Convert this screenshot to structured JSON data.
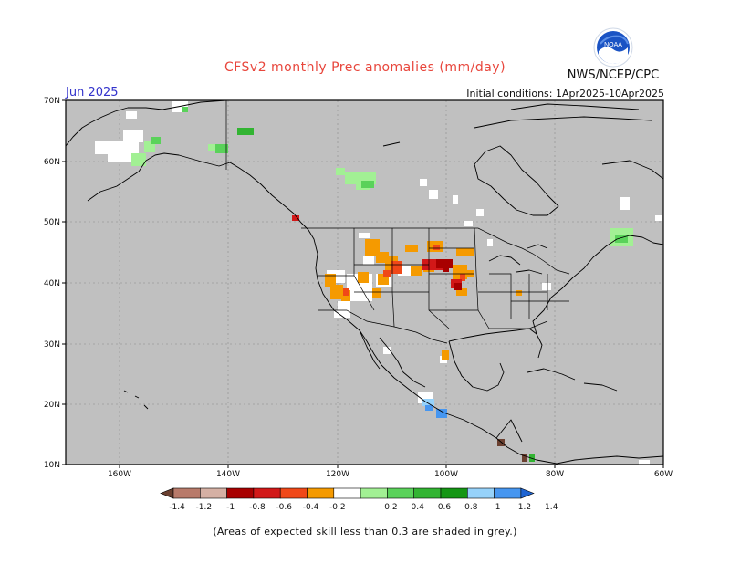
{
  "header": {
    "title": "CFSv2 monthly Prec anomalies (mm/day)",
    "month": "Jun 2025",
    "initial_conditions": "Initial conditions: 1Apr2025-10Apr2025",
    "agency": "NWS/NCEP/CPC",
    "logo_text": "NOAA"
  },
  "map": {
    "background_color": "#c0c0c0",
    "lat_labels": [
      "70N",
      "60N",
      "50N",
      "40N",
      "30N",
      "20N",
      "10N"
    ],
    "lon_labels": [
      "160W",
      "140W",
      "120W",
      "100W",
      "80W",
      "60W"
    ]
  },
  "colorbar": {
    "labels": [
      "-1.4",
      "-1.2",
      "-1",
      "-0.8",
      "-0.6",
      "-0.4",
      "-0.2",
      "0.2",
      "0.4",
      "0.6",
      "0.8",
      "1",
      "1.2",
      "1.4"
    ],
    "colors": [
      "#6b4030",
      "#b87a6a",
      "#d5b0a4",
      "#a80000",
      "#d21818",
      "#f04818",
      "#f59a00",
      "#ffffff",
      "#a2f094",
      "#5ad25a",
      "#32b432",
      "#149614",
      "#96d2fa",
      "#4696f0",
      "#1e64d2"
    ]
  },
  "footnote": "(Areas of expected skill less than 0.3 are shaded in grey.)"
}
